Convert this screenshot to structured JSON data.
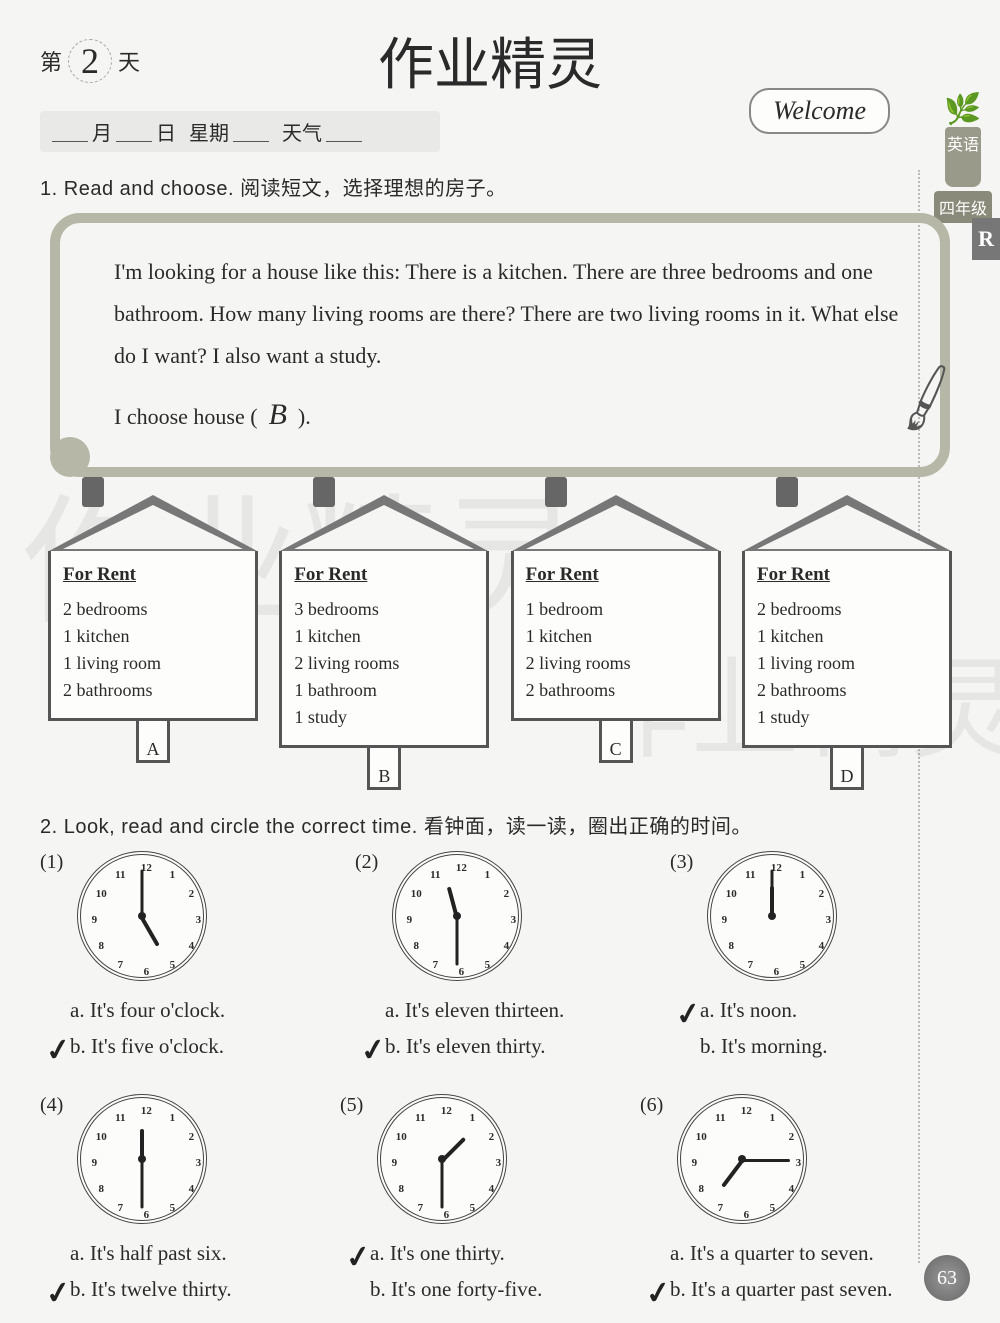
{
  "header": {
    "day_prefix": "第",
    "day_number": "2",
    "day_suffix": "天",
    "brush_title": "作业精灵",
    "month_label": "月",
    "day_label": "日",
    "weekday_label": "星期",
    "weather_label": "天气",
    "welcome": "Welcome",
    "subject": "英语",
    "grade": "四年级",
    "edition": "R"
  },
  "q1": {
    "number": "1.",
    "instruction_en": "Read and choose.",
    "instruction_zh": "阅读短文，选择理想的房子。",
    "passage": "I'm looking for a house like this: There is a kitchen. There are three bedrooms and one bathroom. How many living rooms are there? There are two living rooms in it. What else do I want? I also want a study.",
    "choose_prefix": "I choose house (",
    "answer": "B",
    "choose_suffix": ").",
    "for_rent": "For Rent",
    "houses": [
      {
        "label": "A",
        "lines": [
          "2 bedrooms",
          "1 kitchen",
          "1 living room",
          "2 bathrooms"
        ]
      },
      {
        "label": "B",
        "lines": [
          "3 bedrooms",
          "1 kitchen",
          "2 living rooms",
          "1 bathroom",
          "1 study"
        ]
      },
      {
        "label": "C",
        "lines": [
          "1 bedroom",
          "1 kitchen",
          "2 living rooms",
          "2 bathrooms"
        ]
      },
      {
        "label": "D",
        "lines": [
          "2 bedrooms",
          "1 kitchen",
          "1 living room",
          "2 bathrooms",
          "1 study"
        ]
      }
    ]
  },
  "q2": {
    "number": "2.",
    "instruction_en": "Look, read and circle the correct time.",
    "instruction_zh": "看钟面，读一读，圈出正确的时间。",
    "items": [
      {
        "n": "(1)",
        "hour_angle": 60,
        "min_angle": -90,
        "a": "a. It's four o'clock.",
        "b": "b. It's five o'clock.",
        "correct": "b"
      },
      {
        "n": "(2)",
        "hour_angle": -105,
        "min_angle": 90,
        "a": "a. It's eleven thirteen.",
        "b": "b. It's eleven thirty.",
        "correct": "b"
      },
      {
        "n": "(3)",
        "hour_angle": -90,
        "min_angle": -90,
        "a": "a. It's noon.",
        "b": "b. It's morning.",
        "correct": "a"
      },
      {
        "n": "(4)",
        "hour_angle": -90,
        "min_angle": 90,
        "a": "a. It's half past six.",
        "b": "b. It's twelve thirty.",
        "correct": "b"
      },
      {
        "n": "(5)",
        "hour_angle": -45,
        "min_angle": 90,
        "a": "a. It's one thirty.",
        "b": "b. It's one forty-five.",
        "correct": "a"
      },
      {
        "n": "(6)",
        "hour_angle": 127,
        "min_angle": 0,
        "a": "a. It's a quarter to seven.",
        "b": "b. It's a quarter past seven.",
        "correct": "b"
      }
    ]
  },
  "page_number": "63",
  "watermark": "作业精灵",
  "colors": {
    "paper": "#f5f5f3",
    "ink": "#2a2a2a",
    "frame": "#b7b7a8",
    "house_border": "#555555",
    "clock_border": "#444444"
  }
}
